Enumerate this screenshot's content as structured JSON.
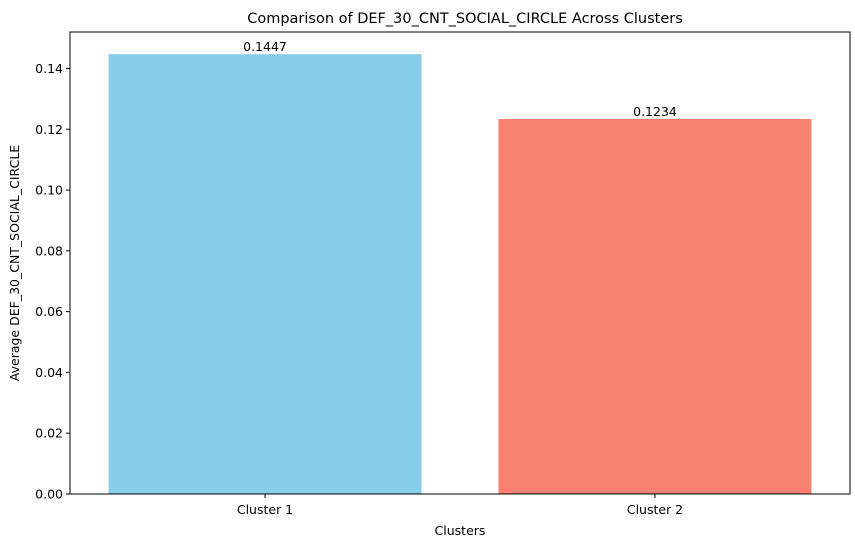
{
  "chart_data": {
    "type": "bar",
    "title": "Comparison of DEF_30_CNT_SOCIAL_CIRCLE Across Clusters",
    "xlabel": "Clusters",
    "ylabel": "Average DEF_30_CNT_SOCIAL_CIRCLE",
    "categories": [
      "Cluster 1",
      "Cluster 2"
    ],
    "values": [
      0.1447,
      0.1234
    ],
    "value_labels": [
      "0.1447",
      "0.1234"
    ],
    "colors": [
      "#87CEEB",
      "#FA8072"
    ],
    "ylim": [
      0,
      0.152
    ],
    "yticks": [
      0.0,
      0.02,
      0.04,
      0.06,
      0.08,
      0.1,
      0.12,
      0.14
    ],
    "ytick_labels": [
      "0.00",
      "0.02",
      "0.04",
      "0.06",
      "0.08",
      "0.10",
      "0.12",
      "0.14"
    ],
    "grid": false,
    "legend": false
  }
}
